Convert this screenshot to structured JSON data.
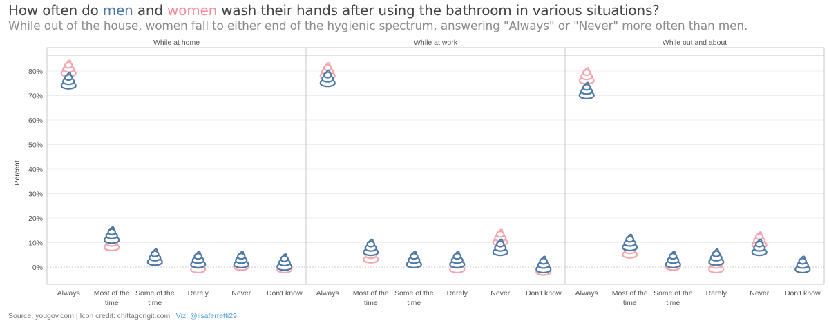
{
  "title": {
    "prefix": "How often do ",
    "men": "men",
    "and": " and ",
    "women": "women",
    "suffix": " wash their hands after using the bathroom in various situations?"
  },
  "subtitle": "While out of the house, women fall to either end of the hygienic spectrum, answering \"Always\" or \"Never\" more often than men.",
  "footer": {
    "source": "Source: yougov.com",
    "sep1": " | ",
    "icon_credit": "Icon credit: chittagongit.com",
    "sep2": " | ",
    "viz": "Viz: @lisaferretti29"
  },
  "colors": {
    "men": "#4e79a7",
    "women": "#f4a6ae",
    "grid": "#eeeeee",
    "zero_line": "#c8c8c8",
    "panel_border": "#c8c8c8",
    "text": "#555555"
  },
  "icon": "poop-emoji-icon",
  "chart_data": {
    "type": "scatter",
    "ylabel": "Percent",
    "ylim": [
      -7,
      87
    ],
    "yticks": [
      "0%",
      "10%",
      "20%",
      "30%",
      "40%",
      "50%",
      "60%",
      "70%",
      "80%"
    ],
    "categories": [
      "Always",
      "Most of the time",
      "Some of the time",
      "Rarely",
      "Never",
      "Don't know"
    ],
    "category_labels": [
      [
        "Always"
      ],
      [
        "Most of the",
        "time"
      ],
      [
        "Some of the",
        "time"
      ],
      [
        "Rarely"
      ],
      [
        "Never"
      ],
      [
        "Don't know"
      ]
    ],
    "grid": true,
    "panels": [
      {
        "title": "While at home",
        "series": [
          {
            "key": "women",
            "values": [
              81,
              10,
              4,
              1,
              2,
              1
            ]
          },
          {
            "key": "men",
            "values": [
              76,
              13,
              4,
              3,
              3,
              2
            ]
          }
        ]
      },
      {
        "title": "While at work",
        "series": [
          {
            "key": "women",
            "values": [
              80,
              5,
              3,
              1,
              12,
              0
            ]
          },
          {
            "key": "men",
            "values": [
              77,
              8,
              3,
              3,
              8,
              1
            ]
          }
        ]
      },
      {
        "title": "While out and about",
        "series": [
          {
            "key": "women",
            "values": [
              78,
              7,
              2,
              1,
              11,
              1
            ]
          },
          {
            "key": "men",
            "values": [
              72,
              10,
              3,
              4,
              8,
              1
            ]
          }
        ]
      }
    ]
  }
}
